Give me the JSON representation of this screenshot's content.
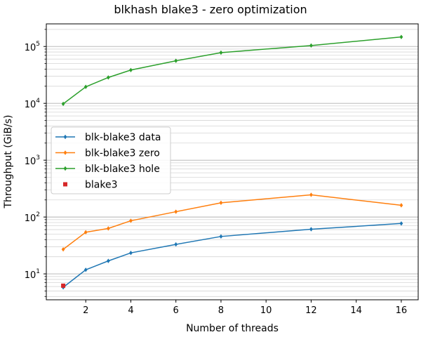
{
  "chart_data": {
    "type": "line",
    "title": "blkhash blake3 - zero optimization",
    "xlabel": "Number of threads",
    "ylabel": "Throughput (GiB/s)",
    "xlim": [
      0.25,
      16.75
    ],
    "ylim": [
      3.5,
      250000
    ],
    "yscale": "log",
    "x_ticks": [
      2,
      4,
      6,
      8,
      10,
      12,
      14,
      16
    ],
    "x_tick_labels": [
      "2",
      "4",
      "6",
      "8",
      "10",
      "12",
      "14",
      "16"
    ],
    "y_ticks": [
      {
        "value": 10,
        "base": "10",
        "exp": "1"
      },
      {
        "value": 100,
        "base": "10",
        "exp": "2"
      },
      {
        "value": 1000,
        "base": "10",
        "exp": "3"
      },
      {
        "value": 10000,
        "base": "10",
        "exp": "4"
      },
      {
        "value": 100000,
        "base": "10",
        "exp": "5"
      }
    ],
    "grid": "y-major-and-minor",
    "legend_position": "center-left",
    "series": [
      {
        "name": "blk-blake3 data",
        "color": "#1f77b4",
        "marker": "diamond",
        "line": true,
        "x": [
          1,
          2,
          3,
          4,
          6,
          8,
          12,
          16
        ],
        "values": [
          5.8,
          11.8,
          16.9,
          23.4,
          33,
          45.5,
          61,
          77
        ]
      },
      {
        "name": "blk-blake3 zero",
        "color": "#ff7f0e",
        "marker": "diamond",
        "line": true,
        "x": [
          1,
          2,
          3,
          4,
          6,
          8,
          12,
          16
        ],
        "values": [
          27,
          54,
          63,
          86,
          124,
          178,
          246,
          161
        ]
      },
      {
        "name": "blk-blake3 hole",
        "color": "#2ca02c",
        "marker": "diamond",
        "line": true,
        "x": [
          1,
          2,
          3,
          4,
          6,
          8,
          12,
          16
        ],
        "values": [
          9800,
          19500,
          28500,
          38500,
          56000,
          78000,
          104000,
          147000
        ]
      },
      {
        "name": "blake3",
        "color": "#d62728",
        "marker": "square",
        "line": false,
        "x": [
          1
        ],
        "values": [
          6.2
        ]
      }
    ]
  }
}
